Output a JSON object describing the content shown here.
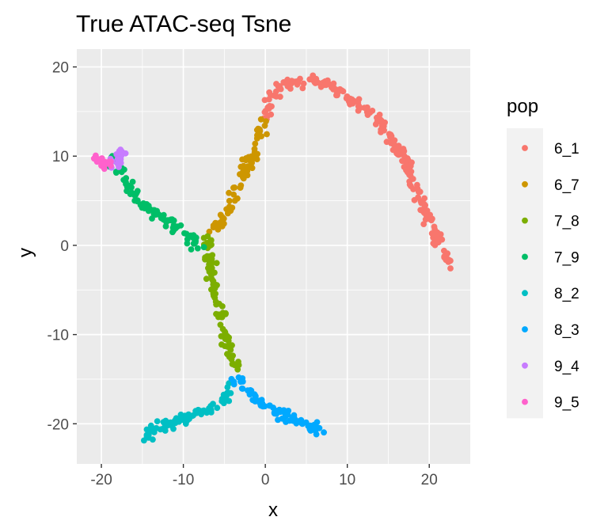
{
  "chart_data": {
    "type": "scatter",
    "title": "True ATAC-seq Tsne",
    "xlabel": "x",
    "ylabel": "y",
    "xlim": [
      -23,
      25
    ],
    "ylim": [
      -24.5,
      22
    ],
    "xticks": [
      -20,
      -10,
      0,
      10,
      20
    ],
    "yticks": [
      -20,
      -10,
      0,
      10,
      20
    ],
    "xtick_labels": [
      "-20",
      "-10",
      "0",
      "10",
      "20"
    ],
    "ytick_labels": [
      "-20",
      "-10",
      "0",
      "10",
      "20"
    ],
    "grid": true,
    "panel_background": "#ebebeb",
    "legend": {
      "title": "pop",
      "position": "right"
    },
    "series": [
      {
        "name": "6_1",
        "color": "#F8766D",
        "path": [
          [
            0.0,
            14.0
          ],
          [
            0.5,
            16.0
          ],
          [
            1.5,
            17.5
          ],
          [
            3.0,
            18.3
          ],
          [
            5.0,
            18.5
          ],
          [
            7.0,
            18.4
          ],
          [
            8.5,
            17.8
          ],
          [
            10.0,
            16.5
          ],
          [
            12.0,
            15.3
          ],
          [
            14.0,
            13.8
          ],
          [
            15.5,
            11.8
          ],
          [
            17.0,
            9.5
          ],
          [
            18.0,
            7.0
          ],
          [
            19.0,
            5.0
          ],
          [
            20.0,
            2.5
          ],
          [
            21.0,
            0.5
          ],
          [
            22.0,
            -1.5
          ],
          [
            22.5,
            -2.5
          ]
        ]
      },
      {
        "name": "6_7",
        "color": "#CD9600",
        "path": [
          [
            -6.5,
            1.5
          ],
          [
            -5.5,
            2.5
          ],
          [
            -4.5,
            4.0
          ],
          [
            -3.8,
            5.5
          ],
          [
            -3.0,
            7.0
          ],
          [
            -2.5,
            8.5
          ],
          [
            -1.5,
            10.0
          ],
          [
            -1.0,
            12.0
          ],
          [
            0.0,
            13.8
          ]
        ]
      },
      {
        "name": "7_8",
        "color": "#7CAE00",
        "path": [
          [
            -7.0,
            1.0
          ],
          [
            -7.0,
            -1.0
          ],
          [
            -6.5,
            -3.5
          ],
          [
            -6.0,
            -5.5
          ],
          [
            -5.5,
            -7.5
          ],
          [
            -5.0,
            -9.5
          ],
          [
            -4.5,
            -11.5
          ],
          [
            -4.0,
            -13.0
          ],
          [
            -3.5,
            -14.0
          ]
        ]
      },
      {
        "name": "7_9",
        "color": "#00BE67",
        "path": [
          [
            -18.5,
            10.0
          ],
          [
            -18.0,
            8.5
          ],
          [
            -17.0,
            7.0
          ],
          [
            -15.5,
            5.0
          ],
          [
            -13.5,
            3.5
          ],
          [
            -11.5,
            2.5
          ],
          [
            -9.5,
            1.5
          ],
          [
            -8.5,
            0.5
          ],
          [
            -8.0,
            -0.5
          ]
        ]
      },
      {
        "name": "8_2",
        "color": "#00BFC4",
        "path": [
          [
            -15.0,
            -21.5
          ],
          [
            -13.5,
            -20.5
          ],
          [
            -12.0,
            -20.0
          ],
          [
            -10.5,
            -19.5
          ],
          [
            -9.0,
            -19.0
          ],
          [
            -7.5,
            -18.5
          ],
          [
            -6.0,
            -17.8
          ],
          [
            -5.0,
            -17.0
          ],
          [
            -4.0,
            -15.5
          ]
        ]
      },
      {
        "name": "8_3",
        "color": "#00A9FF",
        "path": [
          [
            -4.5,
            -15.0
          ],
          [
            -3.0,
            -15.2
          ],
          [
            -2.0,
            -16.5
          ],
          [
            -1.0,
            -17.5
          ],
          [
            0.5,
            -18.0
          ],
          [
            2.0,
            -19.0
          ],
          [
            3.5,
            -19.5
          ],
          [
            5.0,
            -20.0
          ],
          [
            6.5,
            -20.8
          ]
        ]
      },
      {
        "name": "9_4",
        "color": "#C77CFF",
        "path": [
          [
            -18.5,
            9.0
          ],
          [
            -18.0,
            9.8
          ],
          [
            -17.5,
            10.3
          ]
        ]
      },
      {
        "name": "9_5",
        "color": "#FF61CC",
        "path": [
          [
            -21.0,
            9.5
          ],
          [
            -20.5,
            10.0
          ],
          [
            -20.0,
            9.2
          ],
          [
            -19.5,
            8.7
          ],
          [
            -19.0,
            9.5
          ]
        ]
      }
    ]
  }
}
